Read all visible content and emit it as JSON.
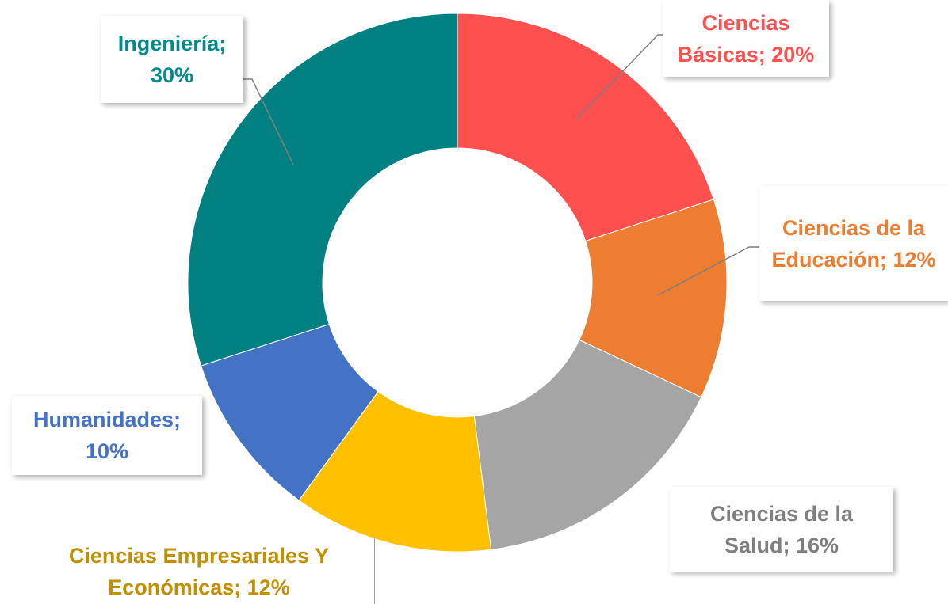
{
  "chart_data": {
    "type": "donut",
    "categories": [
      "Ciencias Básicas",
      "Ciencias de la Educación",
      "Ciencias de la Salud",
      "Ciencias Empresariales Y Económicas",
      "Humanidades",
      "Ingeniería"
    ],
    "values": [
      20,
      12,
      16,
      12,
      10,
      30
    ],
    "value_labels": [
      "20%",
      "12%",
      "16%",
      "12%",
      "10%",
      "30%"
    ],
    "label_separator": "; ",
    "colors": [
      "#ff5050",
      "#ed7d31",
      "#a5a5a5",
      "#ffc000",
      "#4472c4",
      "#008080"
    ],
    "label_colors": [
      "#ff5050",
      "#ed7d31",
      "#7f7f7f",
      "#bf9000",
      "#4472c4",
      "#008b8b"
    ]
  }
}
